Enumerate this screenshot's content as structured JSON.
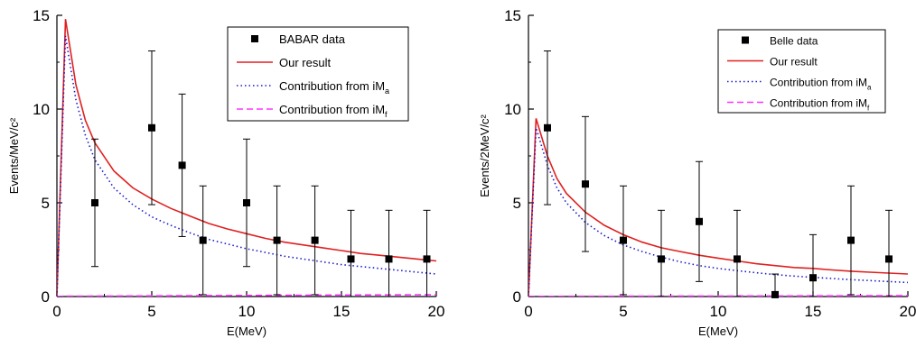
{
  "chart_data": [
    {
      "type": "scatter",
      "xlabel": "E(MeV)",
      "ylabel": "Events/MeV/c²",
      "xlim": [
        0,
        20
      ],
      "ylim": [
        0,
        15
      ],
      "xticks": [
        0,
        5,
        10,
        15,
        20
      ],
      "yticks": [
        0,
        5,
        10,
        15
      ],
      "tick_labels_x": [
        "0",
        "5",
        "10",
        "15",
        "20"
      ],
      "tick_labels_y": [
        "0",
        "5",
        "10",
        "15"
      ],
      "legend_position": "top-right",
      "grid": false,
      "legend": {
        "data_label": "BABAR data",
        "result_label": "Our result",
        "a_label": "Contribution from iM",
        "a_sub": "a",
        "f_label": "Contribution from iM",
        "f_sub": "f"
      },
      "series": [
        {
          "name": "BABAR data",
          "style": "points-with-errorbars",
          "color": "#000000",
          "points": [
            {
              "x": 2.0,
              "y": 5.0,
              "ylo": 1.6,
              "yhi": 8.4
            },
            {
              "x": 5.0,
              "y": 9.0,
              "ylo": 4.9,
              "yhi": 13.1
            },
            {
              "x": 6.6,
              "y": 7.0,
              "ylo": 3.2,
              "yhi": 10.8
            },
            {
              "x": 7.7,
              "y": 3.0,
              "ylo": 0.1,
              "yhi": 5.9
            },
            {
              "x": 10.0,
              "y": 5.0,
              "ylo": 1.6,
              "yhi": 8.4
            },
            {
              "x": 11.6,
              "y": 3.0,
              "ylo": 0.1,
              "yhi": 5.9
            },
            {
              "x": 13.6,
              "y": 3.0,
              "ylo": 0.1,
              "yhi": 5.9
            },
            {
              "x": 15.5,
              "y": 2.0,
              "ylo": 0.0,
              "yhi": 4.6
            },
            {
              "x": 17.5,
              "y": 2.0,
              "ylo": 0.0,
              "yhi": 4.6
            },
            {
              "x": 19.5,
              "y": 2.0,
              "ylo": 0.0,
              "yhi": 4.6
            }
          ]
        },
        {
          "name": "Our result",
          "style": "solid",
          "color": "#e02020",
          "x": [
            0.0,
            0.45,
            1.0,
            1.5,
            2.0,
            3.0,
            4.0,
            5.0,
            6.0,
            7.0,
            8.0,
            9.0,
            10.0,
            11.0,
            12.0,
            13.0,
            14.0,
            15.0,
            16.0,
            17.0,
            18.0,
            19.0,
            20.0
          ],
          "y": [
            0.0,
            14.8,
            11.3,
            9.4,
            8.2,
            6.7,
            5.8,
            5.2,
            4.7,
            4.3,
            3.9,
            3.6,
            3.35,
            3.1,
            2.9,
            2.75,
            2.6,
            2.45,
            2.3,
            2.2,
            2.1,
            2.0,
            1.9
          ]
        },
        {
          "name": "Contribution from iM_a",
          "style": "dotted",
          "color": "#1a1acc",
          "x": [
            0.0,
            0.45,
            1.0,
            1.5,
            2.0,
            3.0,
            4.0,
            5.0,
            6.0,
            7.0,
            8.0,
            9.0,
            10.0,
            11.0,
            12.0,
            13.0,
            14.0,
            15.0,
            16.0,
            17.0,
            18.0,
            19.0,
            20.0
          ],
          "y": [
            0.0,
            13.9,
            10.5,
            8.6,
            7.3,
            5.8,
            4.9,
            4.25,
            3.8,
            3.4,
            3.05,
            2.8,
            2.55,
            2.35,
            2.15,
            2.0,
            1.85,
            1.7,
            1.6,
            1.5,
            1.4,
            1.3,
            1.2
          ]
        },
        {
          "name": "Contribution from iM_f",
          "style": "dashed",
          "color": "#ff33ff",
          "x": [
            0.0,
            0.45,
            5.0,
            10.0,
            15.0,
            20.0
          ],
          "y": [
            0.0,
            0.02,
            0.04,
            0.06,
            0.08,
            0.1
          ]
        }
      ]
    },
    {
      "type": "scatter",
      "xlabel": "E(MeV)",
      "ylabel": "Events/2MeV/c²",
      "xlim": [
        0,
        20
      ],
      "ylim": [
        0,
        15
      ],
      "xticks": [
        0,
        5,
        10,
        15,
        20
      ],
      "yticks": [
        0,
        5,
        10,
        15
      ],
      "tick_labels_x": [
        "0",
        "5",
        "10",
        "15",
        "20"
      ],
      "tick_labels_y": [
        "0",
        "5",
        "10",
        "15"
      ],
      "legend_position": "top-right",
      "grid": false,
      "legend": {
        "data_label": "Belle data",
        "result_label": "Our result",
        "a_label": "Contribution from iM",
        "a_sub": "a",
        "f_label": "Contribution from iM",
        "f_sub": "f"
      },
      "series": [
        {
          "name": "Belle data",
          "style": "points-with-errorbars",
          "color": "#000000",
          "points": [
            {
              "x": 1.0,
              "y": 9.0,
              "ylo": 4.9,
              "yhi": 13.1
            },
            {
              "x": 3.0,
              "y": 6.0,
              "ylo": 2.4,
              "yhi": 9.6
            },
            {
              "x": 5.0,
              "y": 3.0,
              "ylo": 0.1,
              "yhi": 5.9
            },
            {
              "x": 7.0,
              "y": 2.0,
              "ylo": 0.0,
              "yhi": 4.6
            },
            {
              "x": 9.0,
              "y": 4.0,
              "ylo": 0.8,
              "yhi": 7.2
            },
            {
              "x": 11.0,
              "y": 2.0,
              "ylo": 0.0,
              "yhi": 4.6
            },
            {
              "x": 13.0,
              "y": 0.1,
              "ylo": 0.0,
              "yhi": 1.2
            },
            {
              "x": 15.0,
              "y": 1.0,
              "ylo": 0.0,
              "yhi": 3.3
            },
            {
              "x": 17.0,
              "y": 3.0,
              "ylo": 0.1,
              "yhi": 5.9
            },
            {
              "x": 19.0,
              "y": 2.0,
              "ylo": 0.0,
              "yhi": 4.6
            }
          ]
        },
        {
          "name": "Our result",
          "style": "solid",
          "color": "#e02020",
          "x": [
            0.0,
            0.4,
            1.0,
            1.5,
            2.0,
            3.0,
            4.0,
            5.0,
            6.0,
            7.0,
            8.0,
            9.0,
            10.0,
            11.0,
            12.0,
            13.0,
            14.0,
            15.0,
            16.0,
            17.0,
            18.0,
            19.0,
            20.0
          ],
          "y": [
            0.0,
            9.5,
            7.5,
            6.3,
            5.5,
            4.5,
            3.8,
            3.3,
            2.9,
            2.6,
            2.4,
            2.2,
            2.05,
            1.9,
            1.75,
            1.65,
            1.55,
            1.5,
            1.42,
            1.35,
            1.3,
            1.25,
            1.2
          ]
        },
        {
          "name": "Contribution from iM_a",
          "style": "dotted",
          "color": "#1a1acc",
          "x": [
            0.0,
            0.4,
            1.0,
            1.5,
            2.0,
            3.0,
            4.0,
            5.0,
            6.0,
            7.0,
            8.0,
            9.0,
            10.0,
            11.0,
            12.0,
            13.0,
            14.0,
            15.0,
            16.0,
            17.0,
            18.0,
            19.0,
            20.0
          ],
          "y": [
            0.0,
            9.0,
            7.0,
            5.8,
            5.0,
            3.95,
            3.25,
            2.75,
            2.4,
            2.1,
            1.85,
            1.65,
            1.5,
            1.38,
            1.27,
            1.17,
            1.09,
            1.02,
            0.96,
            0.9,
            0.85,
            0.8,
            0.75
          ]
        },
        {
          "name": "Contribution from iM_f",
          "style": "dashed",
          "color": "#ff33ff",
          "x": [
            0.0,
            0.4,
            5.0,
            10.0,
            15.0,
            20.0
          ],
          "y": [
            0.0,
            0.01,
            0.02,
            0.03,
            0.04,
            0.05
          ]
        }
      ]
    }
  ]
}
